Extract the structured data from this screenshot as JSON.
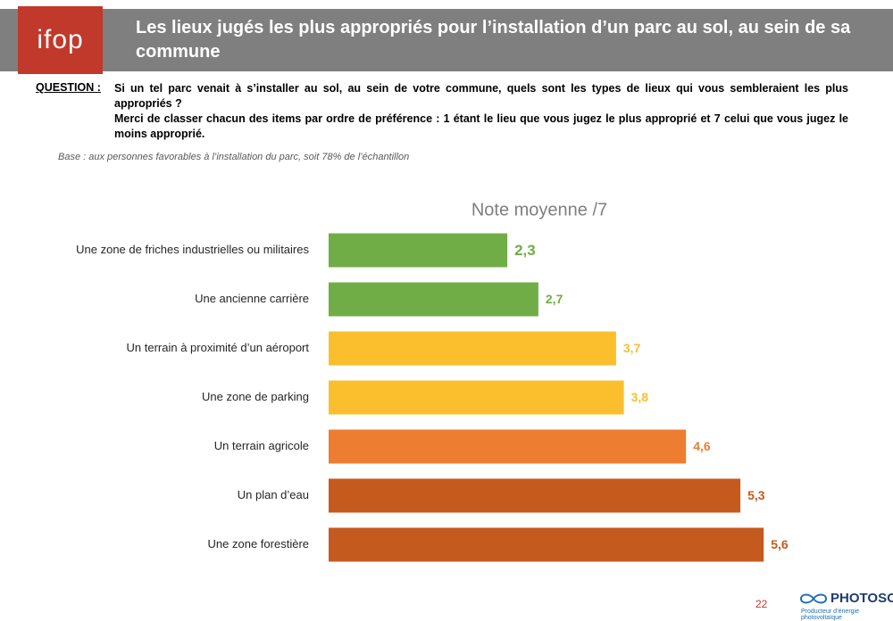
{
  "header": {
    "logo": "ifop",
    "title": "Les lieux jugés les plus appropriés pour l’installation d’un parc au sol, au sein de sa commune"
  },
  "question": {
    "label": "QUESTION :",
    "lines": [
      "Si un tel parc venait à s’installer au sol, au sein de votre commune, quels sont les types de lieux qui vous sembleraient les plus appropriés ?",
      "Merci de classer chacun des items par ordre de préférence : 1 étant le lieu que vous jugez le plus approprié et 7 celui que vous jugez le moins approprié."
    ]
  },
  "base": "Base : aux personnes favorables à l’installation du parc, soit 78% de l’échantillon",
  "chart_data": {
    "type": "bar",
    "orientation": "horizontal",
    "title": "Note moyenne /7",
    "categories": [
      "Une zone de friches industrielles ou militaires",
      "Une ancienne carrière",
      "Un terrain à proximité d’un aéroport",
      "Une zone de parking",
      "Un terrain agricole",
      "Un plan d’eau",
      "Une zone forestière"
    ],
    "values": [
      2.3,
      2.7,
      3.7,
      3.8,
      4.6,
      5.3,
      5.6
    ],
    "value_labels": [
      "2,3",
      "2,7",
      "3,7",
      "3,8",
      "4,6",
      "5,3",
      "5,6"
    ],
    "colors": [
      "#70ad47",
      "#70ad47",
      "#fbbf2d",
      "#fbbf2d",
      "#ed7d31",
      "#c55a1e",
      "#c55a1e"
    ],
    "xlim": [
      0,
      7
    ]
  },
  "footer": {
    "page": "22",
    "brand": "PHOTOSOL",
    "tagline": "Producteur d’énergie photovoltaïque"
  }
}
